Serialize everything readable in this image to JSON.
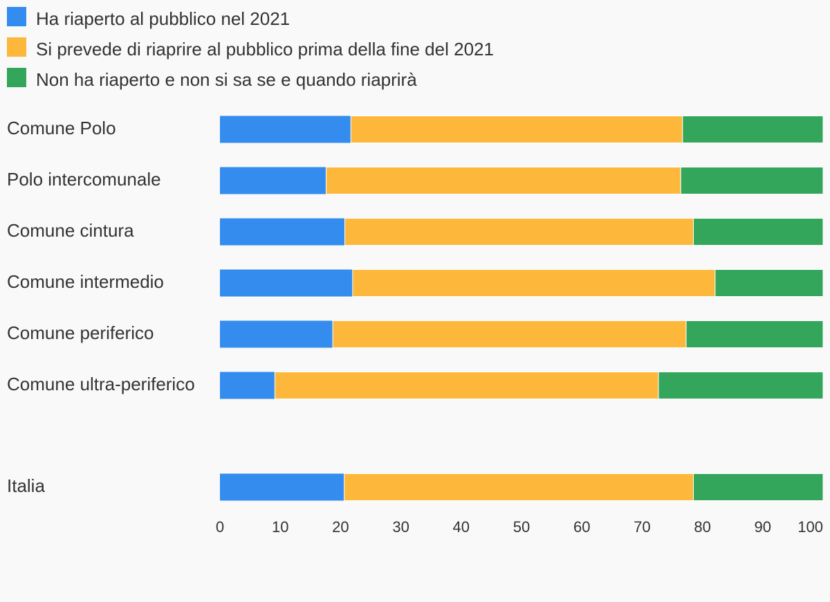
{
  "chart_data": {
    "type": "bar",
    "orientation": "horizontal",
    "stacked": true,
    "categories": [
      "Comune Polo",
      "Polo intercomunale",
      "Comune cintura",
      "Comune intermedio",
      "Comune periferico",
      "Comune ultra-periferico",
      "Italia"
    ],
    "series": [
      {
        "name": "Ha riaperto al pubblico nel 2021",
        "color": "#348cef",
        "values": [
          21.7,
          17.6,
          20.7,
          22.0,
          18.7,
          9.1,
          20.6
        ]
      },
      {
        "name": "Si prevede di riaprire al pubblico prima della fine del 2021",
        "color": "#fdb83b",
        "values": [
          55.0,
          58.8,
          57.8,
          60.1,
          58.6,
          63.6,
          57.9
        ]
      },
      {
        "name": "Non ha riaperto e non si sa se e quando riaprirà",
        "color": "#33a65b",
        "values": [
          23.3,
          23.6,
          21.5,
          17.9,
          22.7,
          27.3,
          21.5
        ]
      }
    ],
    "xlim": [
      0,
      100
    ],
    "xticks": [
      0,
      10,
      20,
      30,
      40,
      50,
      60,
      70,
      80,
      90,
      100
    ],
    "grid": false,
    "legend": "top-left"
  }
}
